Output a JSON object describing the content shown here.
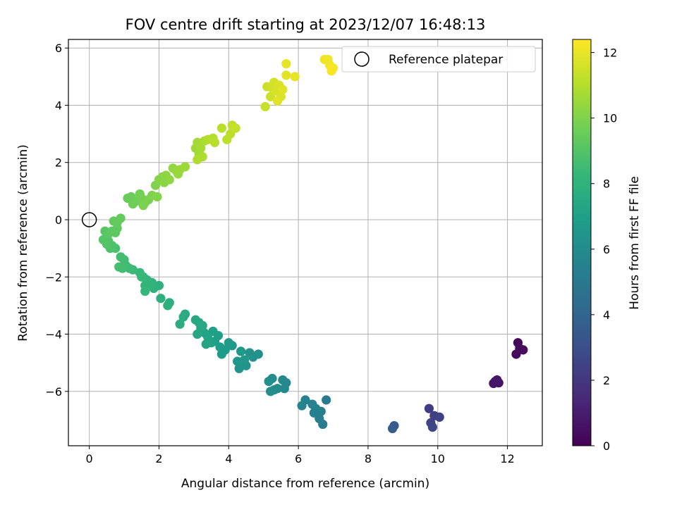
{
  "chart_data": {
    "type": "scatter",
    "title": "FOV centre drift starting at 2023/12/07 16:48:13",
    "xlabel": "Angular distance from reference (arcmin)",
    "ylabel": "Rotation from reference (arcmin)",
    "xlim": [
      -0.6,
      13.0
    ],
    "ylim": [
      -7.9,
      6.3
    ],
    "xticks": [
      0,
      2,
      4,
      6,
      8,
      10,
      12
    ],
    "yticks": [
      -6,
      -4,
      -2,
      0,
      2,
      4,
      6
    ],
    "grid": true,
    "legend": {
      "position": "top-right",
      "entries": [
        "Reference platepar"
      ]
    },
    "reference_point": {
      "x": 0,
      "y": 0,
      "label": "Reference platepar"
    },
    "colorbar": {
      "label": "Hours from first FF file",
      "colormap": "viridis",
      "range": [
        0,
        12.4
      ],
      "ticks": [
        0,
        2,
        4,
        6,
        8,
        10,
        12
      ]
    },
    "colormap_stops": [
      "#440154",
      "#482878",
      "#3e4989",
      "#31688e",
      "#26828e",
      "#1f9e89",
      "#35b779",
      "#6ece58",
      "#b5de2b",
      "#fde725"
    ],
    "points": [
      {
        "x": 12.3,
        "y": -4.3,
        "hours": 0.2
      },
      {
        "x": 12.45,
        "y": -4.55,
        "hours": 0.25
      },
      {
        "x": 12.25,
        "y": -4.7,
        "hours": 0.3
      },
      {
        "x": 12.35,
        "y": -4.5,
        "hours": 0.35
      },
      {
        "x": 11.65,
        "y": -5.65,
        "hours": 0.6
      },
      {
        "x": 11.75,
        "y": -5.7,
        "hours": 0.65
      },
      {
        "x": 11.6,
        "y": -5.72,
        "hours": 0.7
      },
      {
        "x": 11.7,
        "y": -5.6,
        "hours": 0.75
      },
      {
        "x": 9.75,
        "y": -6.6,
        "hours": 2.2
      },
      {
        "x": 9.9,
        "y": -6.85,
        "hours": 2.3
      },
      {
        "x": 10.05,
        "y": -6.9,
        "hours": 2.4
      },
      {
        "x": 9.8,
        "y": -7.1,
        "hours": 2.5
      },
      {
        "x": 9.85,
        "y": -7.25,
        "hours": 2.6
      },
      {
        "x": 8.75,
        "y": -7.2,
        "hours": 3.6
      },
      {
        "x": 8.7,
        "y": -7.3,
        "hours": 3.7
      },
      {
        "x": 6.8,
        "y": -6.3,
        "hours": 5.1
      },
      {
        "x": 6.7,
        "y": -7.15,
        "hours": 5.2
      },
      {
        "x": 6.6,
        "y": -6.95,
        "hours": 5.3
      },
      {
        "x": 6.65,
        "y": -6.7,
        "hours": 5.35
      },
      {
        "x": 6.5,
        "y": -6.6,
        "hours": 5.4
      },
      {
        "x": 6.45,
        "y": -6.75,
        "hours": 5.45
      },
      {
        "x": 6.4,
        "y": -6.45,
        "hours": 5.5
      },
      {
        "x": 6.2,
        "y": -6.3,
        "hours": 5.55
      },
      {
        "x": 6.1,
        "y": -6.5,
        "hours": 5.6
      },
      {
        "x": 5.65,
        "y": -5.7,
        "hours": 5.75
      },
      {
        "x": 5.55,
        "y": -5.6,
        "hours": 5.8
      },
      {
        "x": 5.6,
        "y": -5.9,
        "hours": 5.85
      },
      {
        "x": 5.4,
        "y": -5.9,
        "hours": 5.9
      },
      {
        "x": 5.3,
        "y": -5.95,
        "hours": 5.95
      },
      {
        "x": 5.2,
        "y": -6.0,
        "hours": 6.0
      },
      {
        "x": 5.25,
        "y": -5.55,
        "hours": 6.05
      },
      {
        "x": 5.15,
        "y": -5.65,
        "hours": 6.1
      },
      {
        "x": 4.85,
        "y": -4.7,
        "hours": 6.2
      },
      {
        "x": 4.7,
        "y": -4.8,
        "hours": 6.25
      },
      {
        "x": 4.6,
        "y": -4.65,
        "hours": 6.3
      },
      {
        "x": 4.5,
        "y": -5.1,
        "hours": 6.35
      },
      {
        "x": 4.4,
        "y": -5.05,
        "hours": 6.4
      },
      {
        "x": 4.3,
        "y": -5.2,
        "hours": 6.45
      },
      {
        "x": 4.25,
        "y": -4.95,
        "hours": 6.5
      },
      {
        "x": 4.45,
        "y": -4.9,
        "hours": 6.55
      },
      {
        "x": 4.35,
        "y": -4.6,
        "hours": 6.6
      },
      {
        "x": 4.1,
        "y": -4.4,
        "hours": 6.65
      },
      {
        "x": 4.0,
        "y": -4.3,
        "hours": 6.7
      },
      {
        "x": 3.9,
        "y": -4.55,
        "hours": 6.75
      },
      {
        "x": 3.8,
        "y": -4.7,
        "hours": 6.8
      },
      {
        "x": 3.75,
        "y": -4.45,
        "hours": 6.85
      },
      {
        "x": 3.6,
        "y": -4.25,
        "hours": 6.9
      },
      {
        "x": 3.7,
        "y": -4.05,
        "hours": 6.95
      },
      {
        "x": 3.55,
        "y": -3.9,
        "hours": 7.0
      },
      {
        "x": 3.5,
        "y": -4.3,
        "hours": 7.05
      },
      {
        "x": 3.4,
        "y": -4.1,
        "hours": 7.1
      },
      {
        "x": 3.3,
        "y": -3.95,
        "hours": 7.15
      },
      {
        "x": 3.35,
        "y": -4.35,
        "hours": 7.2
      },
      {
        "x": 3.2,
        "y": -3.8,
        "hours": 7.25
      },
      {
        "x": 3.15,
        "y": -3.6,
        "hours": 7.3
      },
      {
        "x": 3.1,
        "y": -4.0,
        "hours": 7.35
      },
      {
        "x": 3.25,
        "y": -3.7,
        "hours": 7.4
      },
      {
        "x": 3.05,
        "y": -3.5,
        "hours": 7.45
      },
      {
        "x": 2.75,
        "y": -3.3,
        "hours": 7.55
      },
      {
        "x": 2.7,
        "y": -3.4,
        "hours": 7.6
      },
      {
        "x": 2.6,
        "y": -3.65,
        "hours": 7.65
      },
      {
        "x": 2.3,
        "y": -2.9,
        "hours": 7.75
      },
      {
        "x": 2.25,
        "y": -3.0,
        "hours": 7.8
      },
      {
        "x": 2.05,
        "y": -2.75,
        "hours": 7.85
      },
      {
        "x": 2.0,
        "y": -2.3,
        "hours": 7.9
      },
      {
        "x": 1.85,
        "y": -2.4,
        "hours": 7.95
      },
      {
        "x": 1.8,
        "y": -2.2,
        "hours": 8.0
      },
      {
        "x": 1.75,
        "y": -2.25,
        "hours": 8.05
      },
      {
        "x": 1.65,
        "y": -2.1,
        "hours": 8.1
      },
      {
        "x": 1.6,
        "y": -2.3,
        "hours": 8.15
      },
      {
        "x": 1.55,
        "y": -2.0,
        "hours": 8.2
      },
      {
        "x": 1.6,
        "y": -2.5,
        "hours": 8.25
      },
      {
        "x": 1.45,
        "y": -1.85,
        "hours": 8.3
      },
      {
        "x": 1.5,
        "y": -2.0,
        "hours": 8.35
      },
      {
        "x": 1.25,
        "y": -1.75,
        "hours": 8.4
      },
      {
        "x": 1.15,
        "y": -1.7,
        "hours": 8.45
      },
      {
        "x": 1.05,
        "y": -1.6,
        "hours": 8.5
      },
      {
        "x": 1.0,
        "y": -1.4,
        "hours": 8.55
      },
      {
        "x": 0.95,
        "y": -1.7,
        "hours": 8.6
      },
      {
        "x": 0.9,
        "y": -1.3,
        "hours": 8.65
      },
      {
        "x": 0.85,
        "y": -1.65,
        "hours": 8.7
      },
      {
        "x": 0.75,
        "y": -1.0,
        "hours": 8.8
      },
      {
        "x": 0.65,
        "y": -0.9,
        "hours": 8.85
      },
      {
        "x": 0.6,
        "y": -1.0,
        "hours": 8.9
      },
      {
        "x": 0.55,
        "y": -0.75,
        "hours": 8.95
      },
      {
        "x": 0.5,
        "y": -0.85,
        "hours": 9.0
      },
      {
        "x": 0.4,
        "y": -0.7,
        "hours": 9.05
      },
      {
        "x": 0.45,
        "y": -0.4,
        "hours": 9.1
      },
      {
        "x": 0.55,
        "y": -0.5,
        "hours": 9.15
      },
      {
        "x": 0.65,
        "y": -0.4,
        "hours": 9.2
      },
      {
        "x": 0.75,
        "y": -0.45,
        "hours": 9.25
      },
      {
        "x": 0.8,
        "y": -0.3,
        "hours": 9.3
      },
      {
        "x": 0.7,
        "y": -0.05,
        "hours": 9.35
      },
      {
        "x": 0.8,
        "y": -0.1,
        "hours": 9.4
      },
      {
        "x": 0.9,
        "y": 0.05,
        "hours": 9.45
      },
      {
        "x": 1.1,
        "y": 0.75,
        "hours": 9.5
      },
      {
        "x": 1.2,
        "y": 0.8,
        "hours": 9.55
      },
      {
        "x": 1.25,
        "y": 0.55,
        "hours": 9.6
      },
      {
        "x": 1.35,
        "y": 0.65,
        "hours": 9.65
      },
      {
        "x": 1.45,
        "y": 0.9,
        "hours": 9.7
      },
      {
        "x": 1.5,
        "y": 0.75,
        "hours": 9.75
      },
      {
        "x": 1.6,
        "y": 0.6,
        "hours": 9.8
      },
      {
        "x": 1.7,
        "y": 0.7,
        "hours": 9.85
      },
      {
        "x": 1.55,
        "y": 0.5,
        "hours": 9.9
      },
      {
        "x": 1.8,
        "y": 0.85,
        "hours": 9.95
      },
      {
        "x": 1.9,
        "y": 1.2,
        "hours": 10.0
      },
      {
        "x": 1.95,
        "y": 0.8,
        "hours": 10.05
      },
      {
        "x": 2.0,
        "y": 1.4,
        "hours": 10.1
      },
      {
        "x": 2.1,
        "y": 1.5,
        "hours": 10.15
      },
      {
        "x": 2.15,
        "y": 1.3,
        "hours": 10.2
      },
      {
        "x": 2.2,
        "y": 1.55,
        "hours": 10.25
      },
      {
        "x": 2.3,
        "y": 1.4,
        "hours": 10.3
      },
      {
        "x": 2.4,
        "y": 1.8,
        "hours": 10.35
      },
      {
        "x": 2.5,
        "y": 1.7,
        "hours": 10.4
      },
      {
        "x": 2.55,
        "y": 1.6,
        "hours": 10.45
      },
      {
        "x": 2.6,
        "y": 1.75,
        "hours": 10.5
      },
      {
        "x": 2.75,
        "y": 1.85,
        "hours": 10.55
      },
      {
        "x": 3.05,
        "y": 2.5,
        "hours": 10.6
      },
      {
        "x": 3.1,
        "y": 2.7,
        "hours": 10.65
      },
      {
        "x": 3.15,
        "y": 2.3,
        "hours": 10.7
      },
      {
        "x": 3.2,
        "y": 2.5,
        "hours": 10.75
      },
      {
        "x": 3.3,
        "y": 2.75,
        "hours": 10.8
      },
      {
        "x": 3.25,
        "y": 2.2,
        "hours": 10.85
      },
      {
        "x": 3.1,
        "y": 2.1,
        "hours": 10.9
      },
      {
        "x": 3.4,
        "y": 2.8,
        "hours": 10.95
      },
      {
        "x": 3.55,
        "y": 2.85,
        "hours": 11.0
      },
      {
        "x": 3.6,
        "y": 2.7,
        "hours": 11.05
      },
      {
        "x": 3.8,
        "y": 3.2,
        "hours": 11.1
      },
      {
        "x": 3.95,
        "y": 2.8,
        "hours": 11.15
      },
      {
        "x": 4.05,
        "y": 3.0,
        "hours": 11.2
      },
      {
        "x": 4.1,
        "y": 3.3,
        "hours": 11.25
      },
      {
        "x": 4.2,
        "y": 3.2,
        "hours": 11.3
      },
      {
        "x": 5.05,
        "y": 3.95,
        "hours": 11.4
      },
      {
        "x": 5.1,
        "y": 4.65,
        "hours": 11.45
      },
      {
        "x": 5.2,
        "y": 4.3,
        "hours": 11.5
      },
      {
        "x": 5.25,
        "y": 4.6,
        "hours": 11.55
      },
      {
        "x": 5.3,
        "y": 4.8,
        "hours": 11.6
      },
      {
        "x": 5.35,
        "y": 4.5,
        "hours": 11.65
      },
      {
        "x": 5.45,
        "y": 4.7,
        "hours": 11.7
      },
      {
        "x": 5.5,
        "y": 4.3,
        "hours": 11.75
      },
      {
        "x": 5.55,
        "y": 4.55,
        "hours": 11.8
      },
      {
        "x": 5.4,
        "y": 4.15,
        "hours": 11.85
      },
      {
        "x": 5.65,
        "y": 5.05,
        "hours": 11.9
      },
      {
        "x": 5.65,
        "y": 5.45,
        "hours": 11.95
      },
      {
        "x": 5.9,
        "y": 5.0,
        "hours": 12.0
      },
      {
        "x": 6.75,
        "y": 5.6,
        "hours": 12.1
      },
      {
        "x": 6.85,
        "y": 5.6,
        "hours": 12.15
      },
      {
        "x": 6.9,
        "y": 5.4,
        "hours": 12.2
      },
      {
        "x": 7.0,
        "y": 5.3,
        "hours": 12.25
      },
      {
        "x": 6.95,
        "y": 5.2,
        "hours": 12.3
      }
    ]
  }
}
